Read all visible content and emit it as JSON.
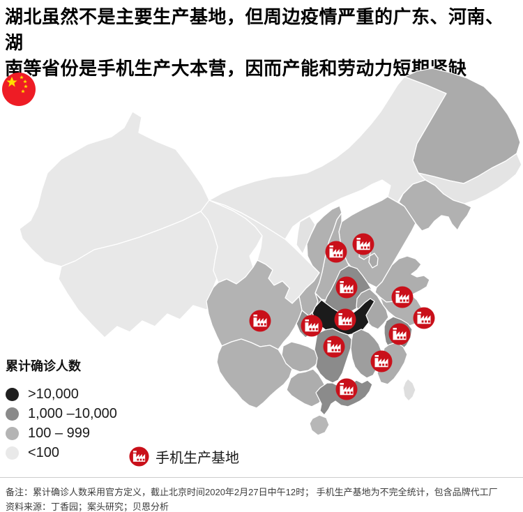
{
  "title": {
    "lines": [
      "湖北虽然不是主要生产基地，但周边疫情严重的广东、河南、湖",
      "南等省份是手机生产大本营，因而产能和劳动力短期紧缺"
    ]
  },
  "flag": {
    "label": "china-flag",
    "red": "#ee1c25",
    "yellow": "#ffde00"
  },
  "legend": {
    "title": "累计确诊人数",
    "items": [
      {
        "label": ">10,000",
        "color": "#1f1f1f"
      },
      {
        "label": "1,000 –10,000",
        "color": "#8a8a8a"
      },
      {
        "label": "100 – 999",
        "color": "#b4b4b4"
      },
      {
        "label": "<100",
        "color": "#e9e9e9"
      }
    ]
  },
  "factory_legend": {
    "label": "手机生产基地",
    "color": "#c9101a"
  },
  "map": {
    "stroke": "#ffffff",
    "provinces": [
      {
        "id": "xinjiang",
        "level": "<100",
        "color": "#e8e8e8"
      },
      {
        "id": "xizang",
        "level": "<100",
        "color": "#e8e8e8"
      },
      {
        "id": "qinghai",
        "level": "<100",
        "color": "#e8e8e8"
      },
      {
        "id": "gansu",
        "level": "<100",
        "color": "#e8e8e8"
      },
      {
        "id": "neimenggu",
        "level": "<100",
        "color": "#e6e6e6"
      },
      {
        "id": "ningxia",
        "level": "<100",
        "color": "#e2e2e2"
      },
      {
        "id": "heilongjiang",
        "level": "100 – 999",
        "color": "#ababab"
      },
      {
        "id": "jilin",
        "level": "<100",
        "color": "#e4e4e4"
      },
      {
        "id": "liaoning",
        "level": "100 – 999",
        "color": "#b1b1b1"
      },
      {
        "id": "hebei",
        "level": "100 – 999",
        "color": "#b1b1b1"
      },
      {
        "id": "shanxi",
        "level": "100 – 999",
        "color": "#b1b1b1"
      },
      {
        "id": "shaanxi",
        "level": "100 – 999",
        "color": "#b1b1b1"
      },
      {
        "id": "shandong",
        "level": "100 – 999",
        "color": "#aeaeae"
      },
      {
        "id": "henan",
        "level": "1,000 –10,000",
        "color": "#8b8b8b"
      },
      {
        "id": "anhui",
        "level": "100 – 999",
        "color": "#a8a8a8"
      },
      {
        "id": "jiangsu",
        "level": "100 – 999",
        "color": "#b1b1b1"
      },
      {
        "id": "shanghai",
        "level": "100 – 999",
        "color": "#b1b1b1"
      },
      {
        "id": "sichuan",
        "level": "100 – 999",
        "color": "#b3b3b3"
      },
      {
        "id": "chongqing",
        "level": "100 – 999",
        "color": "#8f8f8f"
      },
      {
        "id": "hubei",
        "level": ">10,000",
        "color": "#1b1b1b"
      },
      {
        "id": "guizhou",
        "level": "100 – 999",
        "color": "#adadad"
      },
      {
        "id": "yunnan",
        "level": "100 – 999",
        "color": "#b1b1b1"
      },
      {
        "id": "hunan",
        "level": "1,000 –10,000",
        "color": "#8b8b8b"
      },
      {
        "id": "jiangxi",
        "level": "100 – 999",
        "color": "#9e9e9e"
      },
      {
        "id": "zhejiang",
        "level": "1,000 –10,000",
        "color": "#8b8b8b"
      },
      {
        "id": "fujian",
        "level": "100 – 999",
        "color": "#adadad"
      },
      {
        "id": "guangxi",
        "level": "100 – 999",
        "color": "#adadad"
      },
      {
        "id": "guangdong",
        "level": "1,000 –10,000",
        "color": "#8b8b8b"
      },
      {
        "id": "hainan",
        "level": "100 – 999",
        "color": "#b7b7b7"
      },
      {
        "id": "taiwan",
        "level": "<100",
        "color": "#dedede"
      },
      {
        "id": "beijing",
        "level": "100 – 999",
        "color": "#a9a9a9"
      },
      {
        "id": "tianjin",
        "level": "100 – 999",
        "color": "#a9a9a9"
      }
    ],
    "factory_sites": [
      "shanxi",
      "beijing",
      "henan",
      "hubei",
      "chongqing",
      "sichuan",
      "hunan",
      "jiangsu",
      "shanghai",
      "zhejiang",
      "fujian",
      "guangdong"
    ]
  },
  "footer": {
    "note": "备注：累计确诊人数采用官方定义，截止北京时间2020年2月27日中午12时； 手机生产基地为不完全统计，包含品牌代工厂",
    "source": "资料来源：丁香园；案头研究；贝恩分析"
  }
}
